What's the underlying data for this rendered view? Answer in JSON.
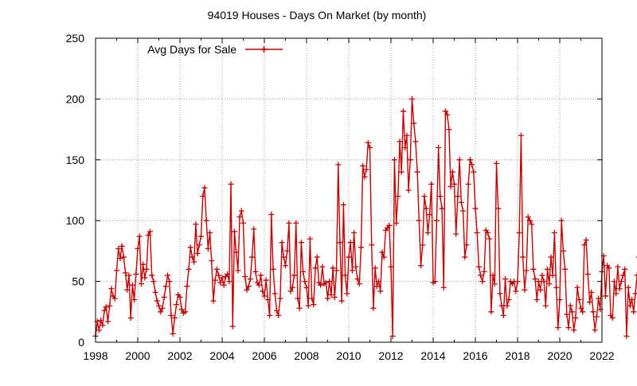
{
  "chart_data": {
    "type": "line",
    "title": "94019 Houses - Days On Market (by month)",
    "xlabel": "",
    "ylabel": "",
    "xlim": [
      1998,
      2022
    ],
    "ylim": [
      0,
      250
    ],
    "x_ticks": [
      "1998",
      "2000",
      "2002",
      "2004",
      "2006",
      "2008",
      "2010",
      "2012",
      "2014",
      "2016",
      "2018",
      "2020",
      "2022"
    ],
    "y_ticks": [
      "0",
      "50",
      "100",
      "150",
      "200",
      "250"
    ],
    "grid": true,
    "legend_position": "top-left",
    "colors": {
      "series": "#c00000",
      "grid": "#a0a0a0",
      "axis": "#000000"
    },
    "series": [
      {
        "name": "Avg Days for Sale",
        "x_start": 1998.0,
        "x_step_months": 1,
        "values": [
          5,
          17,
          10,
          18,
          14,
          26,
          29,
          17,
          30,
          44,
          38,
          36,
          59,
          77,
          69,
          79,
          70,
          57,
          43,
          55,
          20,
          47,
          35,
          56,
          77,
          87,
          48,
          64,
          53,
          60,
          88,
          91,
          55,
          50,
          41,
          34,
          30,
          25,
          28,
          37,
          46,
          55,
          50,
          22,
          7,
          20,
          31,
          39,
          37,
          27,
          24,
          25,
          46,
          60,
          78,
          70,
          66,
          97,
          73,
          80,
          87,
          120,
          127,
          100,
          77,
          90,
          67,
          34,
          51,
          60,
          55,
          49,
          53,
          47,
          54,
          56,
          50,
          130,
          13,
          91,
          74,
          59,
          103,
          108,
          98,
          54,
          43,
          46,
          52,
          70,
          93,
          58,
          49,
          47,
          55,
          42,
          38,
          51,
          35,
          22,
          105,
          60,
          40,
          26,
          22,
          36,
          82,
          70,
          63,
          75,
          98,
          42,
          45,
          55,
          98,
          36,
          28,
          82,
          58,
          50,
          45,
          30,
          85,
          36,
          31,
          61,
          70,
          49,
          47,
          62,
          48,
          49,
          36,
          50,
          39,
          61,
          37,
          59,
          146,
          82,
          34,
          113,
          55,
          40,
          70,
          82,
          59,
          90,
          62,
          52,
          48,
          78,
          145,
          136,
          142,
          164,
          160,
          80,
          28,
          61,
          46,
          50,
          42,
          74,
          70,
          92,
          94,
          96,
          62,
          5,
          150,
          98,
          120,
          165,
          140,
          190,
          160,
          170,
          125,
          150,
          200,
          180,
          165,
          140,
          100,
          63,
          80,
          120,
          110,
          90,
          105,
          130,
          49,
          50,
          100,
          160,
          120,
          110,
          45,
          190,
          187,
          175,
          128,
          140,
          130,
          89,
          120,
          150,
          115,
          108,
          70,
          80,
          130,
          150,
          146,
          140,
          110,
          90,
          62,
          55,
          50,
          58,
          92,
          90,
          85,
          25,
          55,
          48,
          147,
          110,
          40,
          30,
          22,
          52,
          30,
          35,
          50,
          48,
          50,
          42,
          50,
          90,
          170,
          70,
          43,
          59,
          103,
          100,
          97,
          60,
          52,
          35,
          50,
          43,
          55,
          50,
          30,
          60,
          48,
          70,
          55,
          90,
          45,
          12,
          35,
          100,
          75,
          60,
          23,
          12,
          30,
          25,
          10,
          20,
          45,
          35,
          28,
          25,
          80,
          84,
          56,
          33,
          41,
          25,
          10,
          21,
          36,
          27,
          58,
          71,
          38,
          63,
          61,
          22,
          20,
          50,
          40,
          62,
          44,
          50,
          55,
          60,
          5,
          45,
          30,
          35,
          25,
          40,
          55,
          70,
          48,
          52,
          37,
          45,
          40,
          50,
          30,
          42,
          52,
          65,
          48,
          20,
          14,
          25,
          20,
          45,
          37,
          30,
          28,
          25,
          35,
          42,
          46,
          50,
          48,
          32,
          20,
          33,
          45,
          52,
          35,
          60,
          50,
          40,
          38,
          40,
          24,
          35,
          40,
          35,
          35,
          42,
          38,
          63,
          55,
          40,
          30,
          21,
          12,
          2,
          18,
          22,
          27,
          20,
          25,
          24,
          22,
          28,
          26,
          22,
          23,
          12,
          13,
          10,
          12,
          10,
          17
        ]
      }
    ]
  }
}
